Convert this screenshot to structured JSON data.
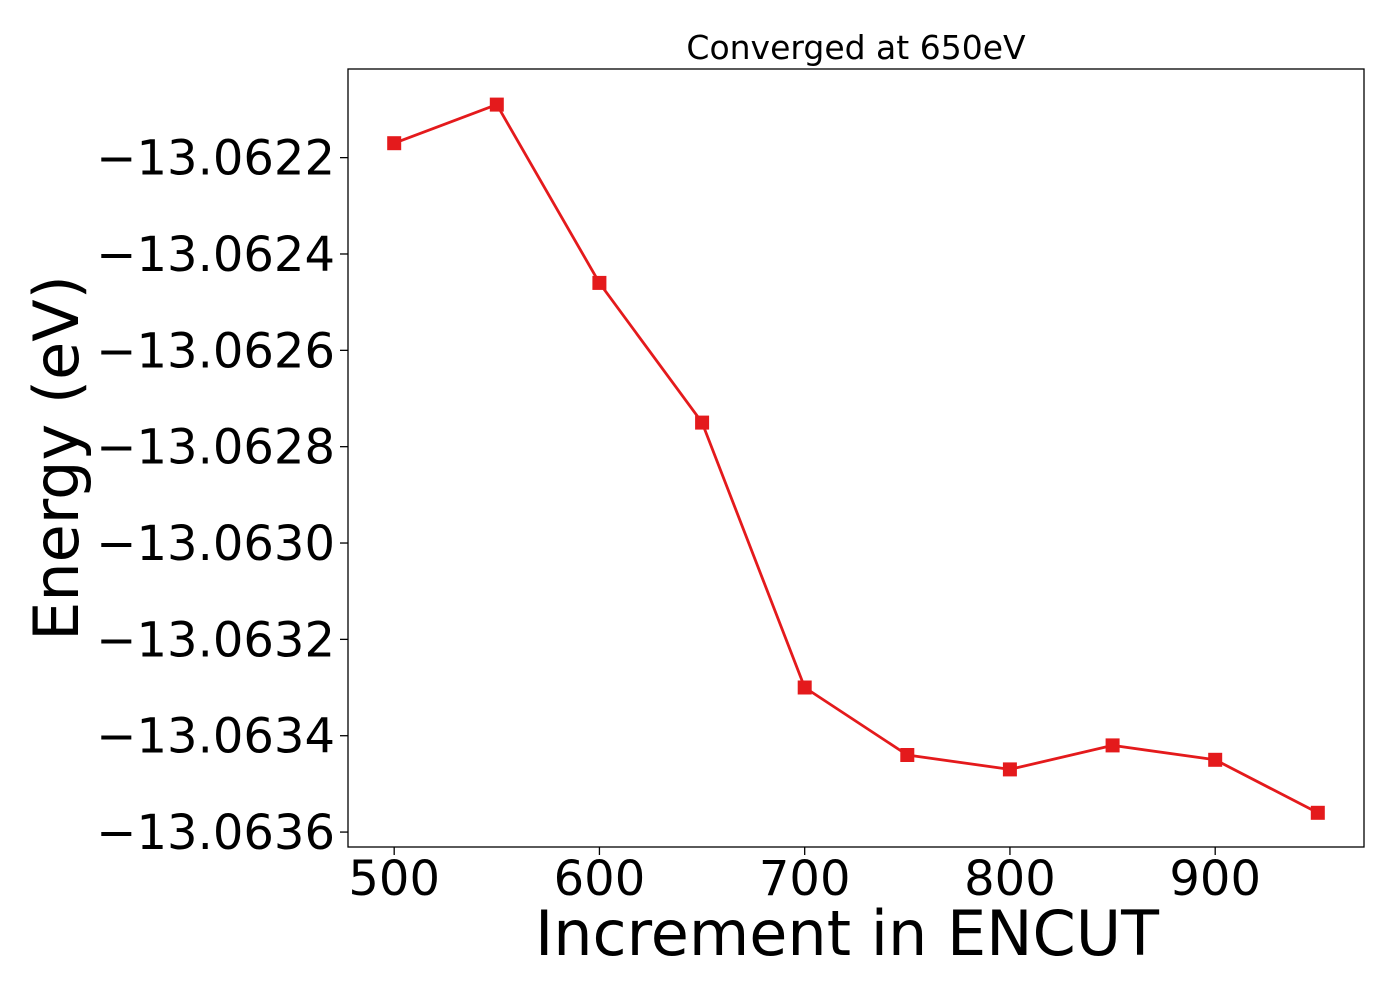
{
  "chart_data": {
    "type": "line",
    "title": "Converged at 650eV",
    "xlabel": "Increment in ENCUT",
    "ylabel": "Energy (eV)",
    "x": [
      500,
      550,
      600,
      650,
      700,
      750,
      800,
      850,
      900,
      950
    ],
    "series": [
      {
        "values": [
          -13.06217,
          -13.06209,
          -13.06246,
          -13.06275,
          -13.0633,
          -13.06344,
          -13.06347,
          -13.06342,
          -13.06345,
          -13.06356
        ],
        "color": "#e41a1c",
        "marker": "square"
      }
    ],
    "xticks": [
      500,
      600,
      700,
      800,
      900
    ],
    "xtick_labels": [
      "500",
      "600",
      "700",
      "800",
      "900"
    ],
    "yticks": [
      -13.0622,
      -13.0624,
      -13.0626,
      -13.0628,
      -13.063,
      -13.0632,
      -13.0634,
      -13.0636
    ],
    "ytick_labels": [
      "−13.0622",
      "−13.0624",
      "−13.0626",
      "−13.0628",
      "−13.0630",
      "−13.0632",
      "−13.0634",
      "−13.0636"
    ],
    "xlim": [
      477.5,
      972.5
    ],
    "ylim": [
      -13.063631,
      -13.062016
    ],
    "grid": false,
    "legend": "none"
  }
}
